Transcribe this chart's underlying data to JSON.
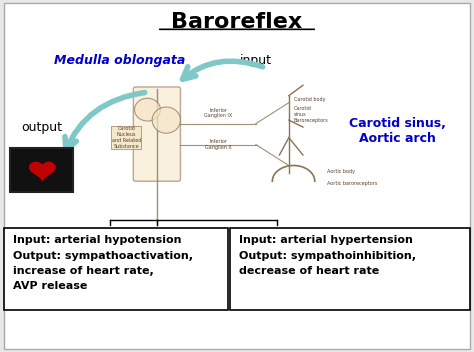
{
  "title": "Baroreflex",
  "background_color": "#e8e8e8",
  "inner_bg_color": "#ffffff",
  "title_fontsize": 16,
  "title_color": "#000000",
  "medulla_label": "Medulla oblongata",
  "medulla_color": "#0000cc",
  "input_label": "input",
  "input_color": "#000000",
  "output_label": "output",
  "output_color": "#000000",
  "carotid_label": "Carotid sinus,\nAortic arch",
  "carotid_color": "#0000cc",
  "box_left_title": "Input: arterial hypotension",
  "box_left_body": "Output: sympathoactivation,\nincrease of heart rate,\nAVP release",
  "box_right_title": "Input: arterial hypertension",
  "box_right_body": "Output: sympathoinhibition,\ndecrease of heart rate",
  "box_color": "#ffffff",
  "box_edge_color": "#000000",
  "arrow_color": "#7ec8c8",
  "text_fontsize": 8.0,
  "label_fontsize": 9
}
